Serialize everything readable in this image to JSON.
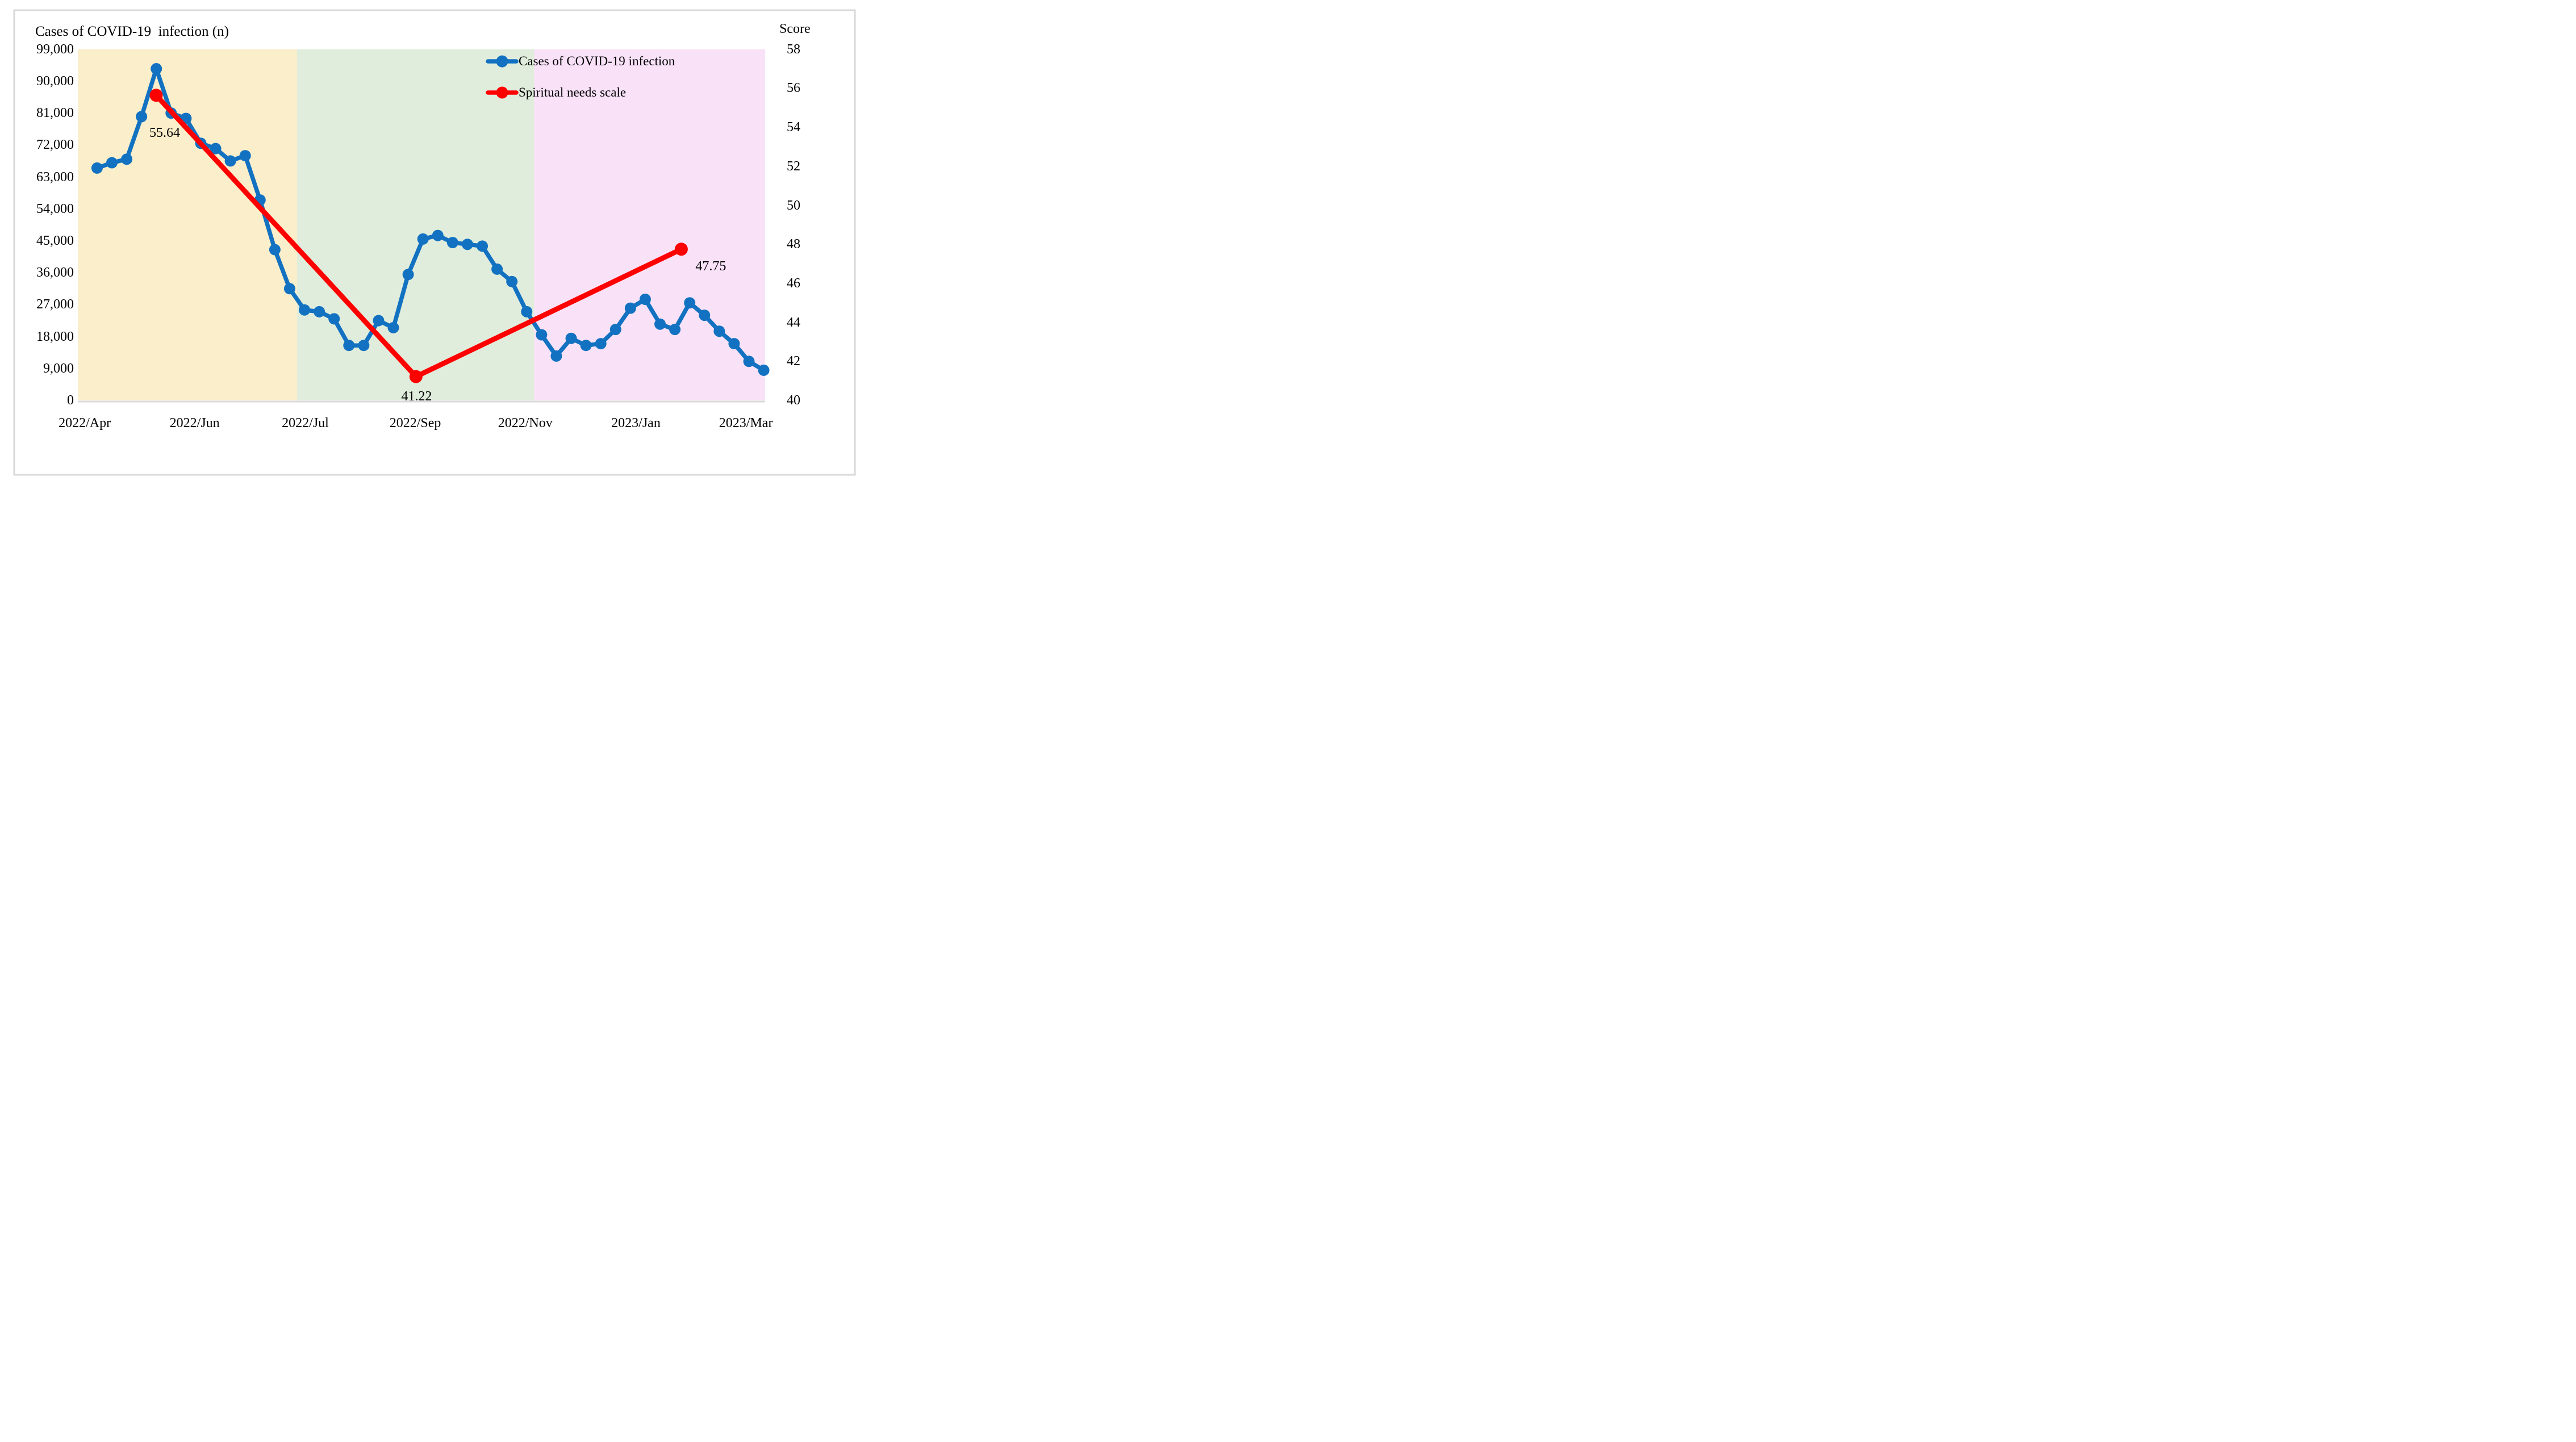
{
  "figure": {
    "background_color": "#FFFFFF",
    "border_color": "#D9D9D9"
  },
  "chart_data": {
    "type": "line",
    "title": "Cases of COVID-19  infection (n)",
    "left_axis": {
      "title": "Cases of COVID-19  infection (n)",
      "min": 0,
      "max": 99000,
      "step": 9000,
      "tick_labels": [
        "0",
        "9,000",
        "18,000",
        "27,000",
        "36,000",
        "45,000",
        "54,000",
        "63,000",
        "72,000",
        "81,000",
        "90,000",
        "99,000"
      ]
    },
    "right_axis": {
      "title": "Score",
      "min": 40,
      "max": 58,
      "step": 2,
      "tick_labels": [
        "40",
        "42",
        "44",
        "46",
        "48",
        "50",
        "52",
        "54",
        "56",
        "58"
      ]
    },
    "x_tick_labels": [
      "2022/Apr",
      "2022/Jun",
      "2022/Jul",
      "2022/Sep",
      "2022/Nov",
      "2023/Jan",
      "2023/Mar"
    ],
    "regions": [
      {
        "name": "wave-1-background",
        "color": "#FBEECB",
        "start": 0,
        "end": 0.319
      },
      {
        "name": "wave-2-background",
        "color": "#E1EDDC",
        "start": 0.319,
        "end": 0.664
      },
      {
        "name": "wave-3-background",
        "color": "#F9E2F8",
        "start": 0.664,
        "end": 1
      }
    ],
    "series": [
      {
        "name": "Cases of COVID-19 infection",
        "color": "#1272C1",
        "axis": "left",
        "values": [
          65500,
          67000,
          68000,
          80000,
          93500,
          81000,
          79500,
          72500,
          71000,
          67500,
          69000,
          56500,
          42500,
          31500,
          25500,
          25000,
          23000,
          15500,
          15500,
          22500,
          20500,
          35500,
          45500,
          46500,
          44500,
          44000,
          43500,
          37000,
          33500,
          25000,
          18500,
          12500,
          17500,
          15500,
          16000,
          20000,
          26000,
          28500,
          21500,
          20000,
          27500,
          24000,
          19500,
          16000,
          11000,
          8500
        ]
      },
      {
        "name": "Spiritual needs scale",
        "color": "#FF0000",
        "axis": "right",
        "points": [
          {
            "x": 0.114,
            "value": 55.64,
            "label": "55.64"
          },
          {
            "x": 0.492,
            "value": 41.22,
            "label": "41.22"
          },
          {
            "x": 0.878,
            "value": 47.75,
            "label": "47.75"
          }
        ]
      }
    ],
    "legend": {
      "position": "top-right",
      "items": [
        {
          "label": "Cases of COVID-19 infection",
          "color": "#1272C1"
        },
        {
          "label": "Spiritual needs scale",
          "color": "#FF0000"
        }
      ]
    }
  }
}
